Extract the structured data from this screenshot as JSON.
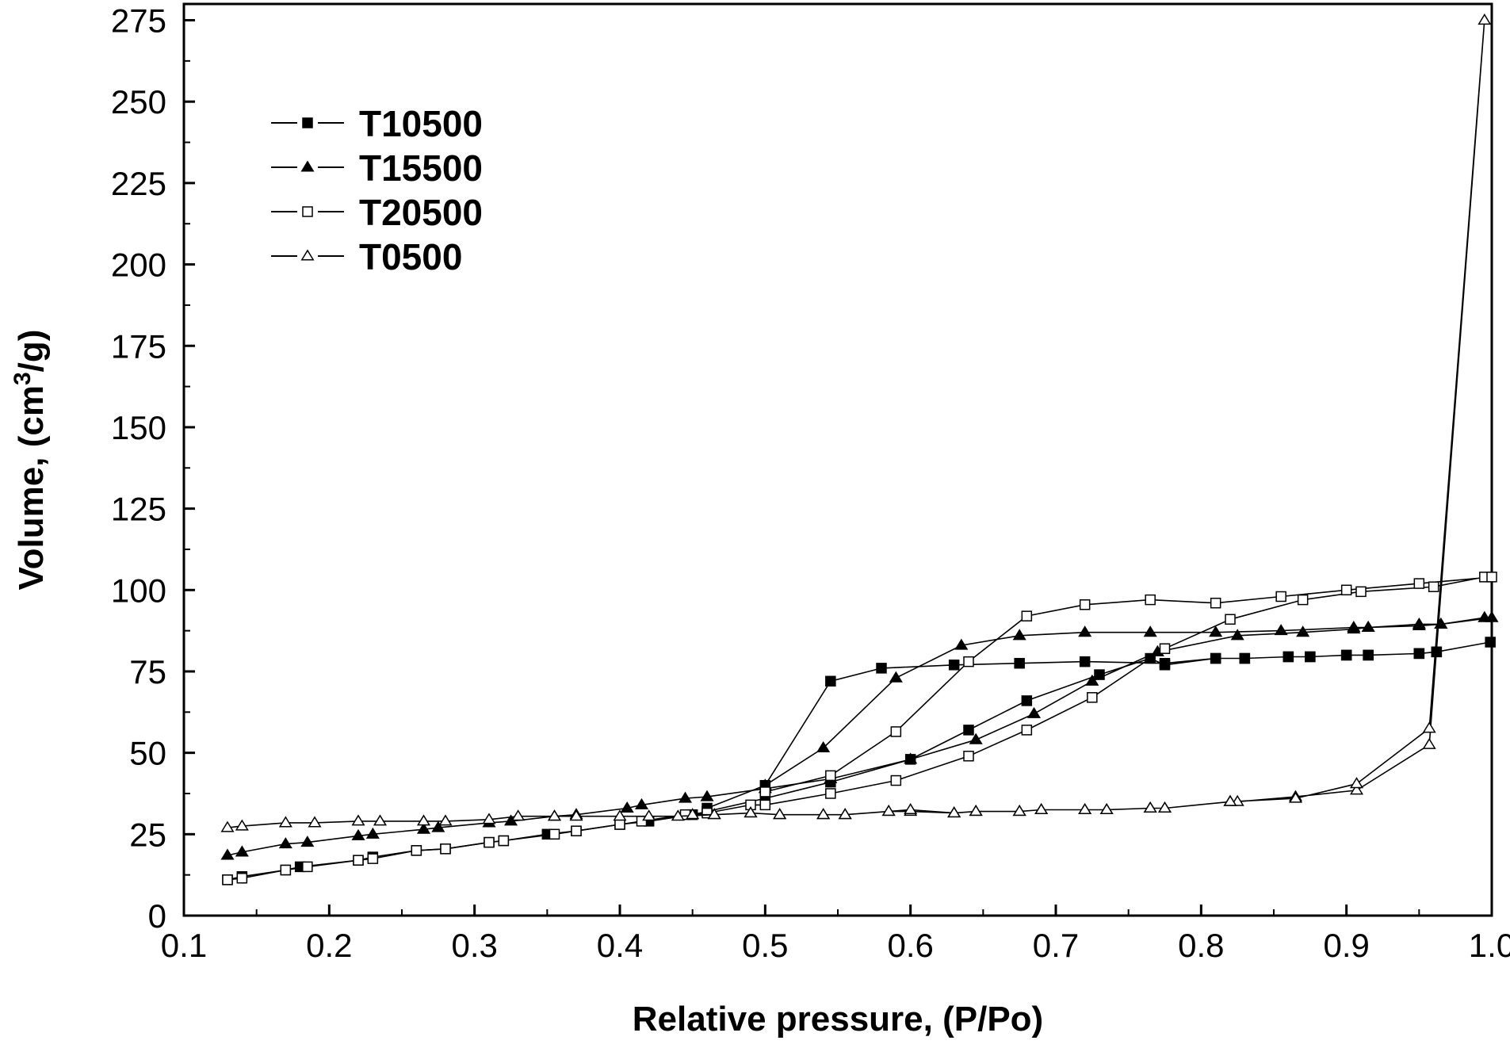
{
  "chart_data": {
    "type": "line",
    "title": "",
    "xlabel": "Relative pressure, (P/Po)",
    "ylabel_main": "Volume,  (cm",
    "ylabel_sup": "3",
    "ylabel_tail": "/g)",
    "xlim": [
      0.1,
      1.0
    ],
    "ylim": [
      0,
      280
    ],
    "xticks": [
      0.1,
      0.2,
      0.3,
      0.4,
      0.5,
      0.6,
      0.7,
      0.8,
      0.9,
      1.0
    ],
    "xtick_labels": [
      "0.1",
      "0.2",
      "0.3",
      "0.4",
      "0.5",
      "0.6",
      "0.7",
      "0.8",
      "0.9",
      "1.0"
    ],
    "yticks": [
      0,
      25,
      50,
      75,
      100,
      125,
      150,
      175,
      200,
      225,
      250,
      275
    ],
    "ytick_labels": [
      "0",
      "25",
      "50",
      "75",
      "100",
      "125",
      "150",
      "175",
      "200",
      "225",
      "250",
      "275"
    ],
    "grid": false,
    "legend_position": "top-left",
    "series": [
      {
        "name": "T10500",
        "marker": "square-filled",
        "points": [
          [
            0.13,
            11
          ],
          [
            0.14,
            12
          ],
          [
            0.17,
            14
          ],
          [
            0.18,
            15
          ],
          [
            0.22,
            17
          ],
          [
            0.23,
            18
          ],
          [
            0.26,
            20
          ],
          [
            0.28,
            20.5
          ],
          [
            0.31,
            22.5
          ],
          [
            0.32,
            23
          ],
          [
            0.35,
            25
          ],
          [
            0.37,
            26
          ],
          [
            0.4,
            28
          ],
          [
            0.42,
            29
          ],
          [
            0.45,
            31
          ],
          [
            0.46,
            32
          ],
          [
            0.5,
            36
          ],
          [
            0.545,
            41
          ],
          [
            0.6,
            48
          ],
          [
            0.64,
            57
          ],
          [
            0.68,
            66
          ],
          [
            0.73,
            74
          ],
          [
            0.765,
            79
          ],
          [
            0.775,
            77
          ],
          [
            0.81,
            79
          ],
          [
            0.83,
            79
          ],
          [
            0.86,
            79.5
          ],
          [
            0.875,
            79.5
          ],
          [
            0.9,
            80
          ],
          [
            0.915,
            80
          ],
          [
            0.95,
            80.5
          ],
          [
            0.962,
            81
          ],
          [
            0.999,
            84
          ],
          [
            0.962,
            81
          ],
          [
            0.95,
            80.5
          ],
          [
            0.915,
            80
          ],
          [
            0.9,
            80
          ],
          [
            0.875,
            79.5
          ],
          [
            0.86,
            79.5
          ],
          [
            0.83,
            79
          ],
          [
            0.81,
            79
          ],
          [
            0.775,
            77.5
          ],
          [
            0.72,
            78
          ],
          [
            0.675,
            77.5
          ],
          [
            0.63,
            77
          ],
          [
            0.58,
            76
          ],
          [
            0.545,
            72
          ],
          [
            0.5,
            40
          ],
          [
            0.46,
            33
          ]
        ]
      },
      {
        "name": "T15500",
        "marker": "triangle-filled",
        "points": [
          [
            0.13,
            18.5
          ],
          [
            0.14,
            19.5
          ],
          [
            0.17,
            22
          ],
          [
            0.185,
            22.5
          ],
          [
            0.22,
            24.5
          ],
          [
            0.23,
            25
          ],
          [
            0.265,
            26.5
          ],
          [
            0.275,
            27
          ],
          [
            0.31,
            28.5
          ],
          [
            0.325,
            29
          ],
          [
            0.355,
            30.5
          ],
          [
            0.37,
            31
          ],
          [
            0.405,
            33
          ],
          [
            0.415,
            34
          ],
          [
            0.445,
            36
          ],
          [
            0.46,
            36.5
          ],
          [
            0.5,
            39
          ],
          [
            0.545,
            42
          ],
          [
            0.6,
            48
          ],
          [
            0.645,
            54
          ],
          [
            0.685,
            62
          ],
          [
            0.725,
            72
          ],
          [
            0.77,
            81
          ],
          [
            0.825,
            86
          ],
          [
            0.87,
            87
          ],
          [
            0.905,
            88
          ],
          [
            0.915,
            88.5
          ],
          [
            0.95,
            89
          ],
          [
            0.965,
            89.5
          ],
          [
            0.995,
            91.5
          ],
          [
            1.0,
            91.5
          ],
          [
            0.965,
            89.5
          ],
          [
            0.95,
            89.5
          ],
          [
            0.915,
            88.5
          ],
          [
            0.905,
            88.5
          ],
          [
            0.855,
            87.5
          ],
          [
            0.81,
            87
          ],
          [
            0.765,
            87
          ],
          [
            0.72,
            87
          ],
          [
            0.675,
            86
          ],
          [
            0.635,
            83
          ],
          [
            0.59,
            73
          ],
          [
            0.54,
            51.5
          ],
          [
            0.5,
            40
          ]
        ]
      },
      {
        "name": "T20500",
        "marker": "square-open",
        "points": [
          [
            0.13,
            11
          ],
          [
            0.14,
            11.5
          ],
          [
            0.17,
            14
          ],
          [
            0.185,
            15
          ],
          [
            0.22,
            17
          ],
          [
            0.23,
            17.5
          ],
          [
            0.26,
            20
          ],
          [
            0.28,
            20.5
          ],
          [
            0.31,
            22.5
          ],
          [
            0.32,
            23
          ],
          [
            0.355,
            25
          ],
          [
            0.37,
            26
          ],
          [
            0.4,
            28
          ],
          [
            0.415,
            29
          ],
          [
            0.445,
            31
          ],
          [
            0.46,
            31.5
          ],
          [
            0.49,
            34
          ],
          [
            0.5,
            34
          ],
          [
            0.545,
            37.5
          ],
          [
            0.59,
            41.5
          ],
          [
            0.64,
            49
          ],
          [
            0.68,
            57
          ],
          [
            0.725,
            67
          ],
          [
            0.775,
            82
          ],
          [
            0.82,
            91
          ],
          [
            0.87,
            97
          ],
          [
            0.91,
            99.5
          ],
          [
            0.96,
            101
          ],
          [
            0.995,
            104
          ],
          [
            1.0,
            104
          ],
          [
            0.95,
            102
          ],
          [
            0.9,
            100
          ],
          [
            0.855,
            98
          ],
          [
            0.81,
            96
          ],
          [
            0.765,
            97
          ],
          [
            0.72,
            95.5
          ],
          [
            0.68,
            92
          ],
          [
            0.64,
            78
          ],
          [
            0.59,
            56.5
          ],
          [
            0.545,
            43
          ],
          [
            0.5,
            38
          ]
        ]
      },
      {
        "name": "T0500",
        "marker": "triangle-open",
        "points": [
          [
            0.13,
            27
          ],
          [
            0.14,
            27.5
          ],
          [
            0.17,
            28.5
          ],
          [
            0.19,
            28.5
          ],
          [
            0.22,
            29
          ],
          [
            0.235,
            29
          ],
          [
            0.265,
            29
          ],
          [
            0.28,
            29
          ],
          [
            0.31,
            29.5
          ],
          [
            0.33,
            30.5
          ],
          [
            0.355,
            30.5
          ],
          [
            0.37,
            30.5
          ],
          [
            0.4,
            30.5
          ],
          [
            0.42,
            30.5
          ],
          [
            0.44,
            30.5
          ],
          [
            0.465,
            31
          ],
          [
            0.49,
            31.5
          ],
          [
            0.51,
            31
          ],
          [
            0.54,
            31
          ],
          [
            0.555,
            31
          ],
          [
            0.585,
            32
          ],
          [
            0.6,
            32
          ],
          [
            0.63,
            31.5
          ],
          [
            0.645,
            32
          ],
          [
            0.675,
            32
          ],
          [
            0.69,
            32.5
          ],
          [
            0.72,
            32.5
          ],
          [
            0.735,
            32.5
          ],
          [
            0.765,
            33
          ],
          [
            0.775,
            33
          ],
          [
            0.82,
            35
          ],
          [
            0.825,
            35
          ],
          [
            0.865,
            36.5
          ],
          [
            0.907,
            38.5
          ],
          [
            0.957,
            52.5
          ],
          [
            0.995,
            275
          ],
          [
            0.957,
            57.5
          ],
          [
            0.907,
            40.5
          ],
          [
            0.865,
            36
          ],
          [
            0.82,
            35
          ],
          [
            0.775,
            33
          ],
          [
            0.765,
            33
          ],
          [
            0.735,
            32.5
          ],
          [
            0.72,
            32.5
          ],
          [
            0.69,
            32.5
          ],
          [
            0.675,
            32
          ],
          [
            0.645,
            32
          ],
          [
            0.63,
            31.5
          ],
          [
            0.6,
            32.5
          ],
          [
            0.585,
            32
          ],
          [
            0.555,
            31
          ],
          [
            0.54,
            31
          ],
          [
            0.51,
            31
          ],
          [
            0.49,
            31.5
          ],
          [
            0.465,
            31
          ],
          [
            0.45,
            31
          ]
        ]
      }
    ]
  }
}
